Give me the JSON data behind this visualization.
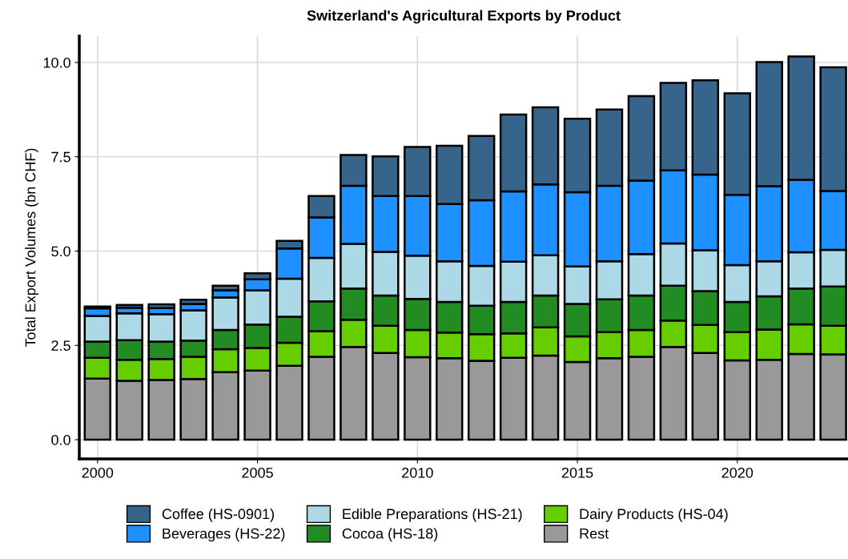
{
  "chart_data": {
    "type": "bar",
    "title": "Switzerland's Agricultural Exports by Product",
    "ylabel": "Total Export Volumes (bn CHF)",
    "x": [
      2000,
      2001,
      2002,
      2003,
      2004,
      2005,
      2006,
      2007,
      2008,
      2009,
      2010,
      2011,
      2012,
      2013,
      2014,
      2015,
      2016,
      2017,
      2018,
      2019,
      2020,
      2021,
      2022,
      2023
    ],
    "stacked": true,
    "xlim": [
      1999.43,
      2023.46
    ],
    "xticks": [
      2000,
      2005,
      2010,
      2015,
      2020
    ],
    "ylim": [
      -0.51,
      10.7
    ],
    "yticks": [
      {
        "value": 0,
        "label": "0.0"
      },
      2.5,
      {
        "value": 5,
        "label": "5.0"
      },
      7.5,
      {
        "value": 10,
        "label": "10.0"
      }
    ],
    "grid": true,
    "legend": "bottom",
    "series": [
      {
        "name": "Rest",
        "color": "#999999",
        "values": [
          1.62,
          1.56,
          1.58,
          1.61,
          1.79,
          1.83,
          1.96,
          2.2,
          2.46,
          2.3,
          2.19,
          2.16,
          2.09,
          2.17,
          2.23,
          2.06,
          2.16,
          2.2,
          2.46,
          2.3,
          2.1,
          2.12,
          2.27,
          2.26
        ]
      },
      {
        "name": "Dairy Products (HS-04)",
        "color": "#66cd00",
        "values": [
          0.55,
          0.56,
          0.56,
          0.59,
          0.61,
          0.6,
          0.61,
          0.68,
          0.72,
          0.72,
          0.72,
          0.68,
          0.71,
          0.65,
          0.75,
          0.68,
          0.69,
          0.71,
          0.7,
          0.74,
          0.75,
          0.8,
          0.79,
          0.76
        ]
      },
      {
        "name": "Cocoa (HS-18)",
        "color": "#228b22",
        "values": [
          0.43,
          0.52,
          0.46,
          0.43,
          0.51,
          0.62,
          0.69,
          0.79,
          0.83,
          0.8,
          0.82,
          0.81,
          0.75,
          0.83,
          0.84,
          0.86,
          0.87,
          0.91,
          0.92,
          0.9,
          0.8,
          0.88,
          0.95,
          1.04
        ]
      },
      {
        "name": "Edible Preparations (HS-21)",
        "color": "#add8e6",
        "values": [
          0.68,
          0.71,
          0.73,
          0.8,
          0.86,
          0.91,
          1.01,
          1.15,
          1.18,
          1.16,
          1.15,
          1.08,
          1.06,
          1.07,
          1.07,
          0.99,
          1.01,
          1.1,
          1.12,
          1.08,
          0.98,
          0.93,
          0.96,
          0.97
        ]
      },
      {
        "name": "Beverages (HS-22)",
        "color": "#1e90ff",
        "values": [
          0.2,
          0.15,
          0.16,
          0.17,
          0.19,
          0.29,
          0.8,
          1.07,
          1.54,
          1.48,
          1.58,
          1.52,
          1.74,
          1.86,
          1.88,
          1.97,
          2.0,
          1.95,
          1.94,
          2.01,
          1.86,
          1.99,
          1.92,
          1.56
        ]
      },
      {
        "name": "Coffee (HS-0901)",
        "color": "#36648b",
        "values": [
          0.05,
          0.07,
          0.1,
          0.11,
          0.12,
          0.16,
          0.2,
          0.57,
          0.82,
          1.05,
          1.3,
          1.54,
          1.7,
          2.04,
          2.04,
          1.95,
          2.02,
          2.24,
          2.32,
          2.5,
          2.69,
          3.29,
          3.27,
          3.28
        ]
      }
    ]
  }
}
